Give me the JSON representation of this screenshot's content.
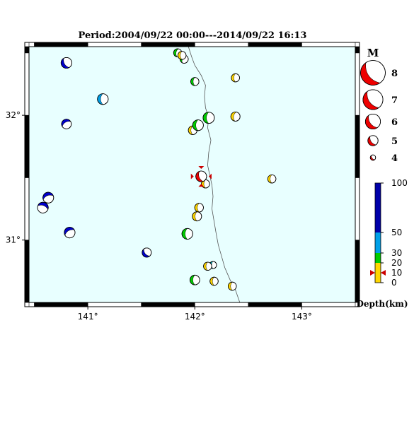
{
  "title": "Period:2004/09/22 00:00---2014/09/22 16:13",
  "map": {
    "lon_range": [
      140.45,
      143.5
    ],
    "lat_range": [
      30.5,
      32.55
    ],
    "lon_ticks": [
      {
        "value": 141,
        "label": "141°"
      },
      {
        "value": 142,
        "label": "142°"
      },
      {
        "value": 143,
        "label": "143°"
      }
    ],
    "lat_ticks": [
      {
        "value": 32,
        "label": "32°"
      },
      {
        "value": 31,
        "label": "31°"
      }
    ],
    "background_color": "#e8ffff",
    "coastline": [
      [
        141.94,
        32.55
      ],
      [
        141.97,
        32.47
      ],
      [
        142.0,
        32.4
      ],
      [
        142.06,
        32.32
      ],
      [
        142.1,
        32.24
      ],
      [
        142.09,
        32.15
      ],
      [
        142.1,
        32.06
      ],
      [
        142.13,
        31.98
      ],
      [
        142.12,
        31.9
      ],
      [
        142.15,
        31.8
      ],
      [
        142.13,
        31.7
      ],
      [
        142.12,
        31.6
      ],
      [
        142.14,
        31.52
      ],
      [
        142.16,
        31.44
      ],
      [
        142.17,
        31.35
      ],
      [
        142.16,
        31.25
      ],
      [
        142.18,
        31.15
      ],
      [
        142.2,
        31.05
      ],
      [
        142.22,
        30.96
      ],
      [
        142.25,
        30.87
      ],
      [
        142.28,
        30.78
      ],
      [
        142.33,
        30.68
      ],
      [
        142.38,
        30.6
      ],
      [
        142.42,
        30.5
      ]
    ]
  },
  "events": [
    {
      "lon": 140.8,
      "lat": 32.42,
      "mag": 5.0,
      "depth": 70,
      "color": "#0000cc",
      "angle": -30
    },
    {
      "lon": 141.14,
      "lat": 32.13,
      "mag": 5.0,
      "depth": 40,
      "color": "#00a0e8",
      "angle": 0
    },
    {
      "lon": 140.8,
      "lat": 31.93,
      "mag": 4.8,
      "depth": 70,
      "color": "#0000cc",
      "angle": 60
    },
    {
      "lon": 141.84,
      "lat": 32.5,
      "mag": 4.5,
      "depth": 20,
      "color": "#00cc00",
      "angle": 10
    },
    {
      "lon": 141.9,
      "lat": 32.45,
      "mag": 4.5,
      "depth": 20,
      "color": "#00cc00",
      "angle": 30
    },
    {
      "lon": 141.88,
      "lat": 32.48,
      "mag": 4.5,
      "depth": 10,
      "color": "#ffd700",
      "angle": 0
    },
    {
      "lon": 142.0,
      "lat": 32.27,
      "mag": 4.5,
      "depth": 20,
      "color": "#00cc00",
      "angle": 0
    },
    {
      "lon": 142.38,
      "lat": 32.3,
      "mag": 4.5,
      "depth": 10,
      "color": "#ffd700",
      "angle": 0
    },
    {
      "lon": 142.13,
      "lat": 31.98,
      "mag": 5.1,
      "depth": 20,
      "color": "#00cc00",
      "angle": 0
    },
    {
      "lon": 141.98,
      "lat": 31.88,
      "mag": 4.6,
      "depth": 10,
      "color": "#ffd700",
      "angle": 0
    },
    {
      "lon": 142.03,
      "lat": 31.92,
      "mag": 5.0,
      "depth": 20,
      "color": "#00cc00",
      "angle": 0
    },
    {
      "lon": 142.38,
      "lat": 31.99,
      "mag": 4.7,
      "depth": 10,
      "color": "#ffd700",
      "angle": 10
    },
    {
      "lon": 142.72,
      "lat": 31.49,
      "mag": 4.5,
      "depth": 10,
      "color": "#ffd700",
      "angle": 0
    },
    {
      "lon": 142.1,
      "lat": 31.45,
      "mag": 4.5,
      "depth": 10,
      "color": "#ffd700",
      "angle": 0
    },
    {
      "lon": 142.06,
      "lat": 31.51,
      "mag": 5.0,
      "depth": 10,
      "color": "#ee0000",
      "angle": -20,
      "highlight": true
    },
    {
      "lon": 140.63,
      "lat": 31.34,
      "mag": 5.0,
      "depth": 70,
      "color": "#0000cc",
      "angle": 70
    },
    {
      "lon": 140.58,
      "lat": 31.26,
      "mag": 5.0,
      "depth": 70,
      "color": "#0000cc",
      "angle": 110
    },
    {
      "lon": 142.04,
      "lat": 31.26,
      "mag": 4.6,
      "depth": 10,
      "color": "#ffd700",
      "angle": 0
    },
    {
      "lon": 142.02,
      "lat": 31.19,
      "mag": 4.7,
      "depth": 10,
      "color": "#ffd700",
      "angle": 0
    },
    {
      "lon": 140.83,
      "lat": 31.06,
      "mag": 5.0,
      "depth": 70,
      "color": "#0000cc",
      "angle": 60
    },
    {
      "lon": 141.93,
      "lat": 31.05,
      "mag": 5.0,
      "depth": 20,
      "color": "#00cc00",
      "angle": 0
    },
    {
      "lon": 141.55,
      "lat": 30.9,
      "mag": 4.7,
      "depth": 70,
      "color": "#0000cc",
      "angle": -40
    },
    {
      "lon": 142.17,
      "lat": 30.8,
      "mag": 4.3,
      "depth": 30,
      "color": "#00bbcc",
      "angle": 0
    },
    {
      "lon": 142.12,
      "lat": 30.79,
      "mag": 4.5,
      "depth": 10,
      "color": "#ffd700",
      "angle": 0
    },
    {
      "lon": 142.0,
      "lat": 30.68,
      "mag": 4.8,
      "depth": 20,
      "color": "#00cc00",
      "angle": 0
    },
    {
      "lon": 142.18,
      "lat": 30.67,
      "mag": 4.5,
      "depth": 10,
      "color": "#ffd700",
      "angle": 0
    },
    {
      "lon": 142.35,
      "lat": 30.63,
      "mag": 4.5,
      "depth": 10,
      "color": "#ffd700",
      "angle": 0
    }
  ],
  "magnitude_legend": {
    "title": "M",
    "entries": [
      {
        "mag": 8,
        "label": "8"
      },
      {
        "mag": 7,
        "label": "7"
      },
      {
        "mag": 6,
        "label": "6"
      },
      {
        "mag": 5,
        "label": "5"
      },
      {
        "mag": 4,
        "label": "4"
      }
    ],
    "color": "#ee0000"
  },
  "depth_scale": {
    "label": "Depth(km)",
    "range": [
      0,
      100
    ],
    "ticks": [
      {
        "value": 0,
        "label": "0"
      },
      {
        "value": 10,
        "label": "10"
      },
      {
        "value": 20,
        "label": "20"
      },
      {
        "value": 30,
        "label": "30"
      },
      {
        "value": 50,
        "label": "50"
      },
      {
        "value": 100,
        "label": "100"
      }
    ],
    "bands": [
      {
        "from": 0,
        "to": 10,
        "color": "#ffd700"
      },
      {
        "from": 10,
        "to": 20,
        "color": "#ffd700"
      },
      {
        "from": 20,
        "to": 30,
        "color": "#00cc00"
      },
      {
        "from": 30,
        "to": 50,
        "color": "#00a0e8"
      },
      {
        "from": 50,
        "to": 100,
        "color": "#0000aa"
      }
    ],
    "marker_depth": 10,
    "marker_color": "#cc0000"
  }
}
